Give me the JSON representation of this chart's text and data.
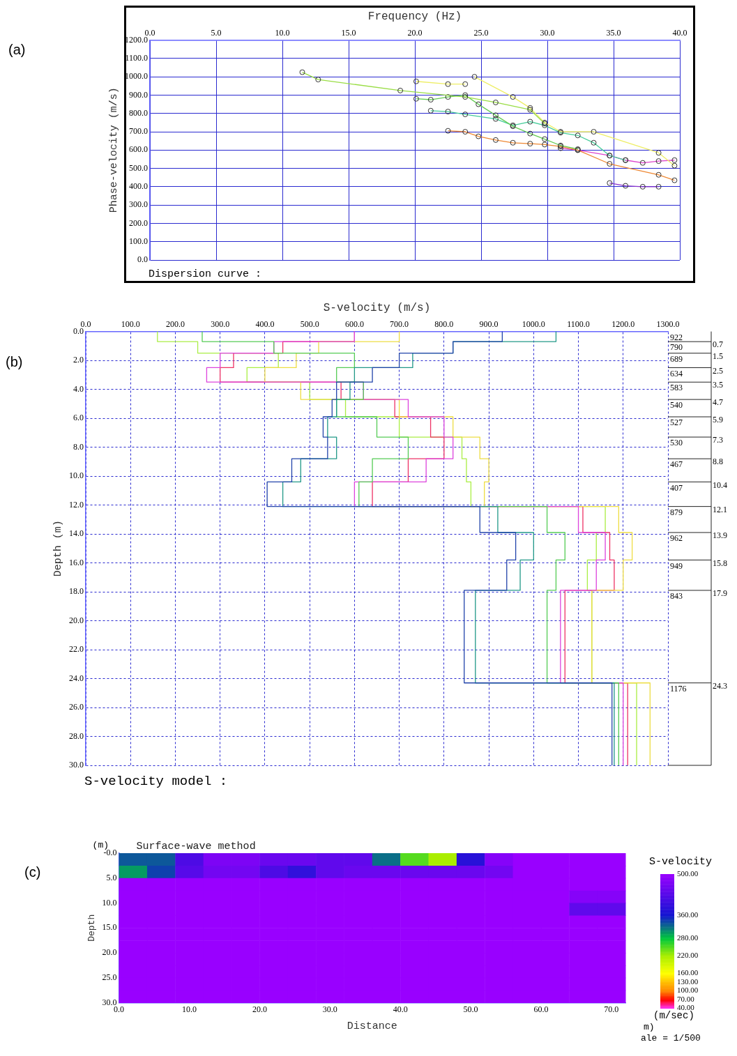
{
  "chart_data": [
    {
      "type": "line",
      "xlabel": "Frequency (Hz)",
      "ylabel": "Phase-velocity (m/s)",
      "marker": "circle",
      "grid": true,
      "xlim": [
        0,
        40
      ],
      "xticks": [
        {
          "value": 0,
          "label": "0.0"
        },
        {
          "value": 5,
          "label": "5.0"
        },
        {
          "value": 10,
          "label": "10.0"
        },
        {
          "value": 15,
          "label": "15.0"
        },
        {
          "value": 20,
          "label": "20.0"
        },
        {
          "value": 25,
          "label": "25.0"
        },
        {
          "value": 30,
          "label": "30.0"
        },
        {
          "value": 35,
          "label": "35.0"
        },
        {
          "value": 40,
          "label": "40.0"
        }
      ],
      "ylim": [
        0,
        1200
      ],
      "yticks": [
        {
          "value": 0,
          "label": "0.0"
        },
        {
          "value": 100,
          "label": "100.0"
        },
        {
          "value": 200,
          "label": "200.0"
        },
        {
          "value": 300,
          "label": "300.0"
        },
        {
          "value": 400,
          "label": "400.0"
        },
        {
          "value": 500,
          "label": "500.0"
        },
        {
          "value": 600,
          "label": "600.0"
        },
        {
          "value": 700,
          "label": "700.0"
        },
        {
          "value": 800,
          "label": "800.0"
        },
        {
          "value": 900,
          "label": "900.0"
        },
        {
          "value": 1000,
          "label": "1000.0"
        },
        {
          "value": 1100,
          "label": "1100.0"
        },
        {
          "value": 1200,
          "label": "1200.0"
        }
      ],
      "series": [
        {
          "color": "#99dd44",
          "x": [
            11.5,
            12.7,
            18.9,
            23.8,
            26.1,
            28.7,
            29.8
          ],
          "values": [
            1025,
            985,
            925,
            890,
            860,
            820,
            745
          ]
        },
        {
          "color": "#eeee66",
          "x": [
            20.1,
            22.5,
            23.8
          ],
          "values": [
            975,
            960,
            960
          ]
        },
        {
          "color": "#eeee66",
          "x": [
            24.5,
            27.4,
            28.7,
            29.8,
            31.0,
            33.5,
            38.4,
            39.6
          ],
          "values": [
            1000,
            890,
            830,
            750,
            700,
            700,
            585,
            515
          ]
        },
        {
          "color": "#66cc55",
          "x": [
            20.1,
            21.2,
            22.5,
            23.8,
            24.8,
            26.1,
            27.4,
            28.7,
            29.8,
            31.0,
            32.3
          ],
          "values": [
            880,
            875,
            890,
            900,
            850,
            790,
            730,
            690,
            660,
            625,
            605
          ]
        },
        {
          "color": "#44cc99",
          "x": [
            21.2,
            22.5,
            23.8,
            26.1,
            27.4,
            28.7,
            29.8,
            31.0,
            32.3,
            33.5,
            34.7,
            35.9
          ],
          "values": [
            815,
            810,
            795,
            770,
            735,
            755,
            735,
            695,
            680,
            640,
            570,
            545
          ]
        },
        {
          "color": "#ee8833",
          "x": [
            22.5,
            23.8,
            24.8,
            26.1,
            27.4,
            28.7,
            29.8,
            31.0,
            32.3,
            34.7,
            38.4,
            39.6
          ],
          "values": [
            705,
            700,
            675,
            655,
            640,
            635,
            630,
            620,
            600,
            525,
            465,
            435
          ]
        },
        {
          "color": "#dd44cc",
          "x": [
            31.0,
            32.3,
            34.7,
            35.9,
            37.2,
            38.4,
            39.6
          ],
          "values": [
            610,
            600,
            570,
            545,
            530,
            540,
            545
          ]
        },
        {
          "color": "#8833cc",
          "x": [
            34.7,
            35.9,
            37.2,
            38.4
          ],
          "values": [
            420,
            405,
            400,
            400
          ]
        }
      ],
      "annotations": [
        "(a)",
        "Dispersion curve :"
      ]
    },
    {
      "type": "line",
      "xlabel": "S-velocity (m/s)",
      "ylabel": "Depth (m)",
      "grid": true,
      "xlim": [
        0,
        1300
      ],
      "xticks": [
        {
          "value": 0,
          "label": "0.0"
        },
        {
          "value": 100,
          "label": "100.0"
        },
        {
          "value": 200,
          "label": "200.0"
        },
        {
          "value": 300,
          "label": "300.0"
        },
        {
          "value": 400,
          "label": "400.0"
        },
        {
          "value": 500,
          "label": "500.0"
        },
        {
          "value": 600,
          "label": "600.0"
        },
        {
          "value": 700,
          "label": "700.0"
        },
        {
          "value": 800,
          "label": "800.0"
        },
        {
          "value": 900,
          "label": "900.0"
        },
        {
          "value": 1000,
          "label": "1000.0"
        },
        {
          "value": 1100,
          "label": "1100.0"
        },
        {
          "value": 1200,
          "label": "1200.0"
        },
        {
          "value": 1300,
          "label": "1300.0"
        }
      ],
      "ylim": [
        30,
        0
      ],
      "yticks": [
        {
          "value": 0,
          "label": "0.0"
        },
        {
          "value": 2,
          "label": "2.0"
        },
        {
          "value": 4,
          "label": "4.0"
        },
        {
          "value": 6,
          "label": "6.0"
        },
        {
          "value": 8,
          "label": "8.0"
        },
        {
          "value": 10,
          "label": "10.0"
        },
        {
          "value": 12,
          "label": "12.0"
        },
        {
          "value": 14,
          "label": "14.0"
        },
        {
          "value": 16,
          "label": "16.0"
        },
        {
          "value": 18,
          "label": "18.0"
        },
        {
          "value": 20,
          "label": "20.0"
        },
        {
          "value": 22,
          "label": "22.0"
        },
        {
          "value": 24,
          "label": "24.0"
        },
        {
          "value": 26,
          "label": "26.0"
        },
        {
          "value": 28,
          "label": "28.0"
        },
        {
          "value": 30,
          "label": "30.0"
        }
      ],
      "series": [
        {
          "color": "#2244aa",
          "x": [
            930,
            930,
            820,
            820,
            700,
            700,
            640,
            640,
            560,
            560,
            550,
            550,
            530,
            530,
            540,
            540,
            460,
            460,
            405,
            405,
            880,
            880,
            960,
            960,
            940,
            940,
            845,
            845,
            1175,
            1175
          ],
          "values": [
            0,
            0.7,
            0.7,
            1.5,
            1.5,
            2.5,
            2.5,
            3.5,
            3.5,
            4.7,
            4.7,
            5.9,
            5.9,
            7.3,
            7.3,
            8.8,
            8.8,
            10.4,
            10.4,
            12.1,
            12.1,
            13.9,
            13.9,
            15.8,
            15.8,
            17.9,
            17.9,
            24.3,
            24.3,
            30
          ]
        },
        {
          "color": "#229988",
          "x": [
            1050,
            1050,
            820,
            820,
            730,
            730,
            600,
            600,
            590,
            590,
            560,
            560,
            540,
            540,
            560,
            560,
            480,
            480,
            440,
            440,
            920,
            920,
            1000,
            1000,
            970,
            970,
            870,
            870,
            1180,
            1180
          ],
          "values": [
            0,
            0.7,
            0.7,
            1.5,
            1.5,
            2.5,
            2.5,
            3.5,
            3.5,
            4.7,
            4.7,
            5.9,
            5.9,
            7.3,
            7.3,
            8.8,
            8.8,
            10.4,
            10.4,
            12.1,
            12.1,
            13.9,
            13.9,
            15.8,
            15.8,
            17.9,
            17.9,
            24.3,
            24.3,
            30
          ]
        },
        {
          "color": "#55cc55",
          "x": [
            260,
            260,
            420,
            420,
            600,
            600,
            560,
            560,
            620,
            620,
            560,
            560,
            650,
            650,
            720,
            720,
            640,
            640,
            610,
            610,
            1030,
            1030,
            1070,
            1070,
            1050,
            1050,
            1030,
            1030,
            1190,
            1190
          ],
          "values": [
            0,
            0.7,
            0.7,
            1.5,
            1.5,
            2.5,
            2.5,
            3.5,
            3.5,
            4.7,
            4.7,
            5.9,
            5.9,
            7.3,
            7.3,
            8.8,
            8.8,
            10.4,
            10.4,
            12.1,
            12.1,
            13.9,
            13.9,
            15.8,
            15.8,
            17.9,
            17.9,
            24.3,
            24.3,
            30
          ]
        },
        {
          "color": "#dd44dd",
          "x": [
            600,
            600,
            420,
            420,
            300,
            300,
            270,
            270,
            620,
            620,
            720,
            720,
            800,
            800,
            820,
            820,
            760,
            760,
            600,
            600,
            1100,
            1100,
            1160,
            1160,
            1140,
            1140,
            1060,
            1060,
            1200,
            1200
          ],
          "values": [
            0,
            0.7,
            0.7,
            1.5,
            1.5,
            2.5,
            2.5,
            3.5,
            3.5,
            4.7,
            4.7,
            5.9,
            5.9,
            7.3,
            7.3,
            8.8,
            8.8,
            10.4,
            10.4,
            12.1,
            12.1,
            13.9,
            13.9,
            15.8,
            15.8,
            17.9,
            17.9,
            24.3,
            24.3,
            30
          ]
        },
        {
          "color": "#eedd44",
          "x": [
            700,
            700,
            520,
            520,
            470,
            470,
            400,
            400,
            480,
            480,
            700,
            700,
            820,
            820,
            880,
            880,
            900,
            900,
            890,
            890,
            1190,
            1190,
            1220,
            1220,
            1200,
            1200,
            1130,
            1130,
            1260,
            1260
          ],
          "values": [
            0,
            0.7,
            0.7,
            1.5,
            1.5,
            2.5,
            2.5,
            3.5,
            3.5,
            4.7,
            4.7,
            5.9,
            5.9,
            7.3,
            7.3,
            8.8,
            8.8,
            10.4,
            10.4,
            12.1,
            12.1,
            13.9,
            13.9,
            15.8,
            15.8,
            17.9,
            17.9,
            24.3,
            24.3,
            30
          ]
        },
        {
          "color": "#ee3366",
          "x": [
            600,
            600,
            440,
            440,
            330,
            330,
            300,
            300,
            570,
            570,
            690,
            690,
            770,
            770,
            800,
            800,
            720,
            720,
            640,
            640,
            1110,
            1110,
            1170,
            1170,
            1180,
            1180,
            1070,
            1070,
            1210,
            1210
          ],
          "values": [
            0,
            0.7,
            0.7,
            1.5,
            1.5,
            2.5,
            2.5,
            3.5,
            3.5,
            4.7,
            4.7,
            5.9,
            5.9,
            7.3,
            7.3,
            8.8,
            8.8,
            10.4,
            10.4,
            12.1,
            12.1,
            13.9,
            13.9,
            15.8,
            15.8,
            17.9,
            17.9,
            24.3,
            24.3,
            30
          ]
        },
        {
          "color": "#aaee44",
          "x": [
            160,
            160,
            250,
            250,
            430,
            430,
            360,
            360,
            500,
            500,
            580,
            580,
            700,
            700,
            840,
            840,
            850,
            850,
            860,
            860,
            1160,
            1160,
            1140,
            1140,
            1120,
            1120,
            1130,
            1130,
            1230,
            1230
          ],
          "values": [
            0,
            0.7,
            0.7,
            1.5,
            1.5,
            2.5,
            2.5,
            3.5,
            3.5,
            4.7,
            4.7,
            5.9,
            5.9,
            7.3,
            7.3,
            8.8,
            8.8,
            10.4,
            10.4,
            12.1,
            12.1,
            13.9,
            13.9,
            15.8,
            15.8,
            17.9,
            17.9,
            24.3,
            24.3,
            30
          ]
        }
      ],
      "ref_lines": [
        {
          "axis": "y",
          "value": 0.7,
          "label": "0.7"
        },
        {
          "axis": "y",
          "value": 1.5,
          "label": "1.5"
        },
        {
          "axis": "y",
          "value": 2.5,
          "label": "2.5"
        },
        {
          "axis": "y",
          "value": 3.5,
          "label": "3.5"
        },
        {
          "axis": "y",
          "value": 4.7,
          "label": "4.7"
        },
        {
          "axis": "y",
          "value": 5.9,
          "label": "5.9"
        },
        {
          "axis": "y",
          "value": 7.3,
          "label": "7.3"
        },
        {
          "axis": "y",
          "value": 8.8,
          "label": "8.8"
        },
        {
          "axis": "y",
          "value": 10.4,
          "label": "10.4"
        },
        {
          "axis": "y",
          "value": 12.1,
          "label": "12.1"
        },
        {
          "axis": "y",
          "value": 13.9,
          "label": "13.9"
        },
        {
          "axis": "y",
          "value": 15.8,
          "label": "15.8"
        },
        {
          "axis": "y",
          "value": 17.9,
          "label": "17.9"
        },
        {
          "axis": "y",
          "value": 24.3,
          "label": "24.3"
        }
      ],
      "annotations": [
        "(b)",
        "S-velocity model :",
        "922",
        "790",
        "689",
        "634",
        "583",
        "540",
        "527",
        "530",
        "467",
        "407",
        "879",
        "962",
        "949",
        "843",
        "1176"
      ]
    },
    {
      "type": "heatmap",
      "title": "Surface-wave method",
      "xlabel": "Distance",
      "ylabel": "Depth",
      "clabel": "S-velocity",
      "x": [
        2,
        6,
        10,
        14,
        18,
        22,
        26,
        30,
        34,
        38,
        42,
        46,
        50,
        54,
        58,
        62,
        66,
        70
      ],
      "xlim": [
        0,
        72
      ],
      "xticks": [
        {
          "value": 0,
          "label": "0.0"
        },
        {
          "value": 10,
          "label": "10.0"
        },
        {
          "value": 20,
          "label": "20.0"
        },
        {
          "value": 30,
          "label": "30.0"
        },
        {
          "value": 40,
          "label": "40.0"
        },
        {
          "value": 50,
          "label": "50.0"
        },
        {
          "value": 60,
          "label": "60.0"
        },
        {
          "value": 70,
          "label": "70.0"
        }
      ],
      "ylim": [
        30,
        0
      ],
      "yticks": [
        {
          "value": 0,
          "label": "-0.0"
        },
        {
          "value": 5,
          "label": "5.0"
        },
        {
          "value": 10,
          "label": "10.0"
        },
        {
          "value": 15,
          "label": "15.0"
        },
        {
          "value": 20,
          "label": "20.0"
        },
        {
          "value": 25,
          "label": "25.0"
        },
        {
          "value": 30,
          "label": "30.0"
        }
      ],
      "clim": [
        40,
        500
      ],
      "cticks": [
        {
          "value": 40,
          "label": "40.00"
        },
        {
          "value": 70,
          "label": "70.00"
        },
        {
          "value": 100,
          "label": "100.00"
        },
        {
          "value": 130,
          "label": "130.00"
        },
        {
          "value": 160,
          "label": "160.00"
        },
        {
          "value": 220,
          "label": "220.00"
        },
        {
          "value": 280,
          "label": "280.00"
        },
        {
          "value": 360,
          "label": "360.00"
        },
        {
          "value": 500,
          "label": "500.00"
        }
      ],
      "cells": [
        [
          330,
          330,
          420,
          470,
          470,
          450,
          450,
          440,
          440,
          320,
          250,
          220,
          380,
          480,
          500,
          500,
          500,
          500
        ],
        [
          300,
          340,
          430,
          460,
          460,
          420,
          390,
          440,
          450,
          450,
          450,
          450,
          450,
          460,
          500,
          500,
          500,
          500
        ],
        [
          500,
          500,
          500,
          500,
          500,
          500,
          500,
          500,
          500,
          500,
          500,
          500,
          500,
          500,
          500,
          500,
          500,
          500
        ],
        [
          500,
          500,
          500,
          500,
          500,
          500,
          500,
          500,
          500,
          500,
          500,
          500,
          500,
          500,
          500,
          500,
          480,
          480
        ],
        [
          500,
          500,
          500,
          500,
          500,
          500,
          500,
          500,
          500,
          500,
          500,
          500,
          500,
          500,
          500,
          500,
          440,
          440
        ],
        [
          500,
          500,
          500,
          500,
          500,
          500,
          500,
          500,
          500,
          500,
          500,
          500,
          500,
          500,
          500,
          500,
          500,
          500
        ],
        [
          500,
          500,
          500,
          500,
          500,
          500,
          500,
          500,
          500,
          500,
          500,
          500,
          500,
          500,
          500,
          500,
          500,
          500
        ],
        [
          500,
          500,
          500,
          500,
          500,
          500,
          500,
          500,
          500,
          500,
          500,
          500,
          500,
          500,
          500,
          500,
          500,
          500
        ],
        [
          500,
          500,
          500,
          500,
          500,
          500,
          500,
          500,
          500,
          500,
          500,
          500,
          500,
          500,
          500,
          500,
          500,
          500
        ],
        [
          500,
          500,
          500,
          500,
          500,
          500,
          500,
          500,
          500,
          500,
          500,
          500,
          500,
          500,
          500,
          500,
          500,
          500
        ],
        [
          500,
          500,
          500,
          500,
          500,
          500,
          500,
          500,
          500,
          500,
          500,
          500,
          500,
          500,
          500,
          500,
          500,
          500
        ],
        [
          500,
          500,
          500,
          500,
          500,
          500,
          500,
          500,
          500,
          500,
          500,
          500,
          500,
          500,
          500,
          500,
          500,
          500
        ]
      ],
      "annotations": [
        "(c)",
        "(m)",
        "(m/sec)",
        "m)",
        "ale = 1/500"
      ]
    }
  ]
}
